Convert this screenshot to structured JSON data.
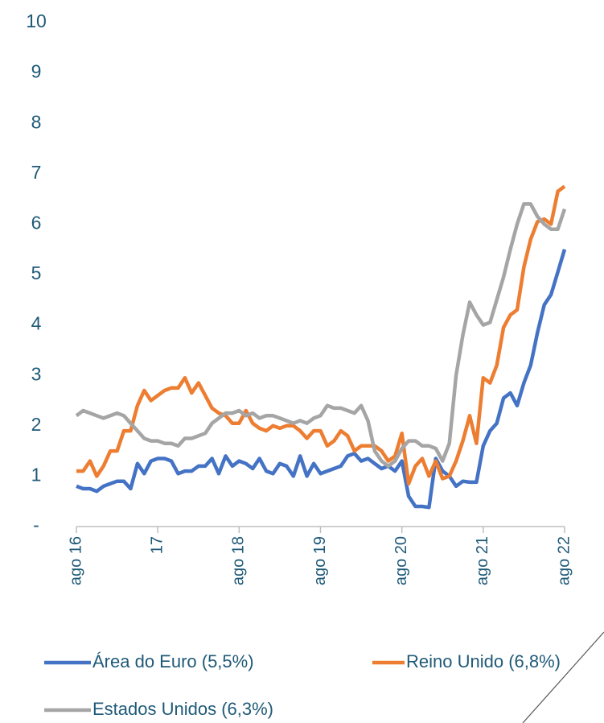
{
  "chart_data": {
    "type": "line",
    "categories": [
      "ago 16",
      null,
      null,
      null,
      null,
      null,
      null,
      null,
      null,
      null,
      null,
      null,
      "17",
      null,
      null,
      null,
      null,
      null,
      null,
      null,
      null,
      null,
      null,
      null,
      "ago 18",
      null,
      null,
      null,
      null,
      null,
      null,
      null,
      null,
      null,
      null,
      null,
      "ago 19",
      null,
      null,
      null,
      null,
      null,
      null,
      null,
      null,
      null,
      null,
      null,
      "ago 20",
      null,
      null,
      null,
      null,
      null,
      null,
      null,
      null,
      null,
      null,
      null,
      "ago 21",
      null,
      null,
      null,
      null,
      null,
      null,
      null,
      null,
      null,
      null,
      null,
      "ago 22"
    ],
    "series": [
      {
        "name": "Área do Euro (5,5%)",
        "color": "#4472c4",
        "values": [
          0.8,
          0.75,
          0.75,
          0.7,
          0.8,
          0.85,
          0.9,
          0.9,
          0.75,
          1.25,
          1.05,
          1.3,
          1.35,
          1.35,
          1.3,
          1.05,
          1.1,
          1.1,
          1.2,
          1.2,
          1.35,
          1.05,
          1.4,
          1.2,
          1.3,
          1.25,
          1.15,
          1.35,
          1.1,
          1.05,
          1.25,
          1.2,
          1.0,
          1.4,
          1.0,
          1.25,
          1.05,
          1.1,
          1.15,
          1.2,
          1.4,
          1.45,
          1.3,
          1.35,
          1.25,
          1.15,
          1.2,
          1.1,
          1.3,
          0.6,
          0.4,
          0.4,
          0.38,
          1.35,
          1.1,
          1.0,
          0.8,
          0.9,
          0.88,
          0.88,
          1.6,
          1.9,
          2.05,
          2.55,
          2.65,
          2.4,
          2.85,
          3.2,
          3.85,
          4.4,
          4.6,
          5.05,
          5.5
        ]
      },
      {
        "name": "Reino Unido (6,8%)",
        "color": "#ed7d31",
        "values": [
          1.1,
          1.1,
          1.3,
          1.0,
          1.2,
          1.5,
          1.5,
          1.9,
          1.9,
          2.4,
          2.7,
          2.5,
          2.6,
          2.7,
          2.75,
          2.75,
          2.95,
          2.65,
          2.85,
          2.6,
          2.35,
          2.25,
          2.2,
          2.05,
          2.05,
          2.3,
          2.05,
          1.95,
          1.9,
          2.0,
          1.95,
          2.0,
          2.0,
          1.9,
          1.75,
          1.9,
          1.9,
          1.6,
          1.7,
          1.9,
          1.8,
          1.5,
          1.6,
          1.6,
          1.6,
          1.5,
          1.3,
          1.4,
          1.85,
          0.85,
          1.2,
          1.35,
          1.0,
          1.3,
          0.95,
          1.0,
          1.3,
          1.7,
          2.2,
          1.65,
          2.95,
          2.85,
          3.2,
          3.95,
          4.2,
          4.3,
          5.15,
          5.7,
          6.05,
          6.1,
          6.0,
          6.65,
          6.75
        ]
      },
      {
        "name": "Estados Unidos (6,3%)",
        "color": "#a5a5a5",
        "values": [
          2.2,
          2.3,
          2.25,
          2.2,
          2.15,
          2.2,
          2.25,
          2.2,
          2.05,
          1.9,
          1.75,
          1.7,
          1.7,
          1.65,
          1.65,
          1.6,
          1.75,
          1.75,
          1.8,
          1.85,
          2.05,
          2.15,
          2.25,
          2.25,
          2.3,
          2.2,
          2.25,
          2.15,
          2.2,
          2.2,
          2.15,
          2.1,
          2.05,
          2.1,
          2.05,
          2.15,
          2.2,
          2.4,
          2.35,
          2.35,
          2.3,
          2.25,
          2.4,
          2.1,
          1.5,
          1.3,
          1.2,
          1.3,
          1.55,
          1.7,
          1.7,
          1.6,
          1.6,
          1.55,
          1.3,
          1.65,
          3.0,
          3.8,
          4.45,
          4.2,
          4.0,
          4.05,
          4.5,
          4.95,
          5.5,
          6.0,
          6.4,
          6.4,
          6.15,
          6.0,
          5.9,
          5.9,
          6.3
        ]
      }
    ],
    "ylim": [
      0,
      10
    ],
    "yticks": [
      {
        "value": 0,
        "label": "-"
      },
      1,
      2,
      3,
      4,
      5,
      6,
      7,
      8,
      9,
      10
    ]
  }
}
